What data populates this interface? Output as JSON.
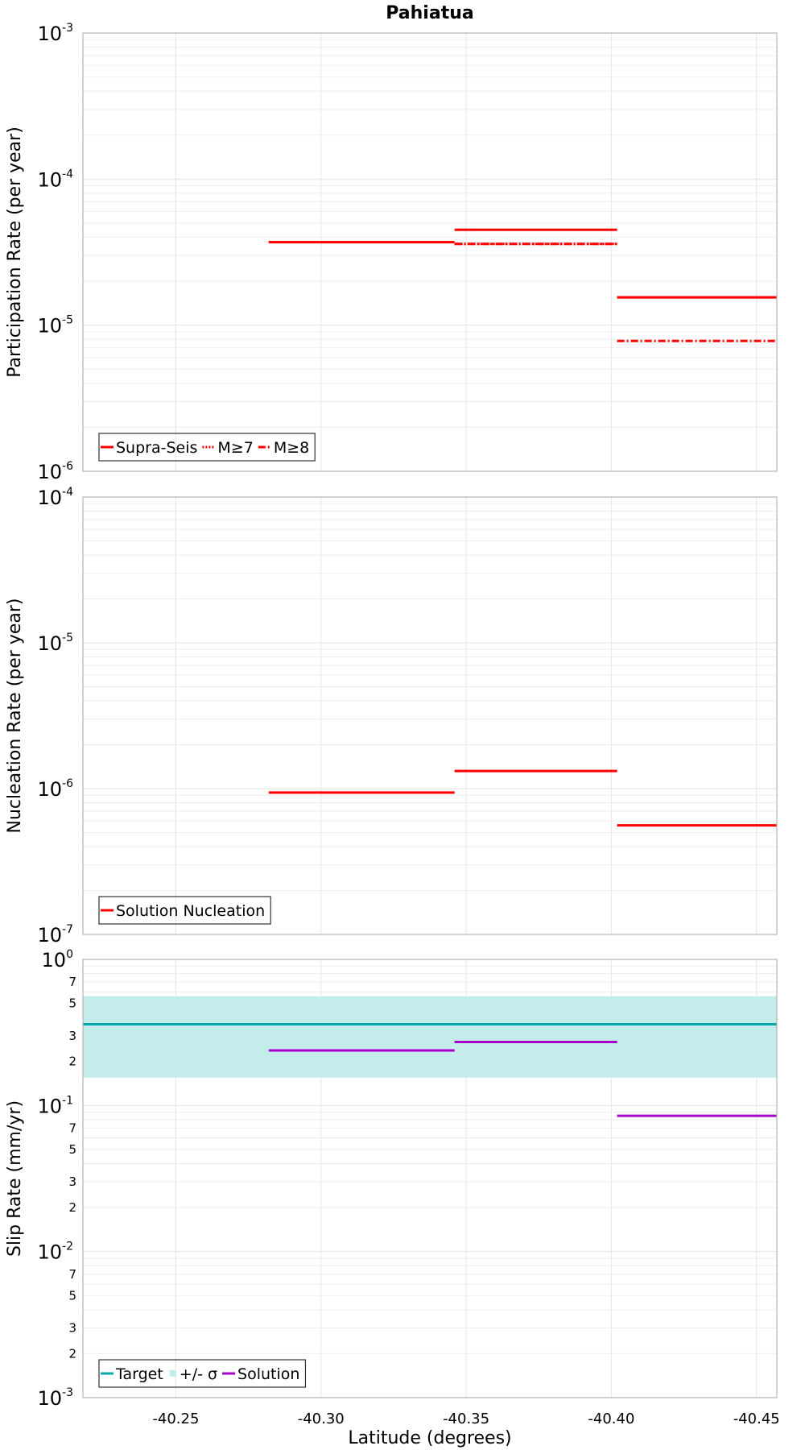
{
  "chart_data": [
    {
      "type": "line",
      "title": "Pahiatua",
      "ylabel": "Participation Rate (per year)",
      "yscale": "log",
      "ylim": [
        1e-06,
        0.001
      ],
      "xlim": [
        -40.218,
        -40.457
      ],
      "grid": true,
      "legend_position": "bottom-left",
      "legend": [
        "Supra-Seis",
        "M≥7",
        "M≥8"
      ],
      "series": [
        {
          "name": "Supra-Seis",
          "color": "#ff0000",
          "style": "solid",
          "segments": [
            [
              -40.282,
              -40.346,
              3.7e-05
            ],
            [
              -40.346,
              -40.402,
              4.5e-05
            ],
            [
              -40.402,
              -40.457,
              1.55e-05
            ]
          ]
        },
        {
          "name": "M≥7",
          "color": "#ff0000",
          "style": "dotted",
          "segments": [
            [
              -40.282,
              -40.346,
              3.7e-05
            ],
            [
              -40.346,
              -40.402,
              3.6e-05
            ],
            [
              -40.402,
              -40.457,
              1.55e-05
            ]
          ]
        },
        {
          "name": "M≥8",
          "color": "#ff0000",
          "style": "dash-dot",
          "segments": [
            [
              -40.346,
              -40.402,
              3.6e-05
            ],
            [
              -40.402,
              -40.457,
              7.8e-06
            ]
          ]
        }
      ]
    },
    {
      "type": "line",
      "ylabel": "Nucleation Rate (per year)",
      "yscale": "log",
      "ylim": [
        1e-07,
        0.0001
      ],
      "xlim": [
        -40.218,
        -40.457
      ],
      "grid": true,
      "legend_position": "bottom-left",
      "legend": [
        "Solution Nucleation"
      ],
      "series": [
        {
          "name": "Solution Nucleation",
          "color": "#ff0000",
          "style": "solid",
          "segments": [
            [
              -40.282,
              -40.346,
              9.4e-07
            ],
            [
              -40.346,
              -40.402,
              1.32e-06
            ],
            [
              -40.402,
              -40.457,
              5.6e-07
            ]
          ]
        }
      ]
    },
    {
      "type": "line",
      "ylabel": "Slip Rate (mm/yr)",
      "xlabel": "Latitude (degrees)",
      "yscale": "log",
      "ylim": [
        0.001,
        1
      ],
      "xlim": [
        -40.218,
        -40.457
      ],
      "grid": true,
      "legend_position": "bottom-left",
      "legend": [
        "Target",
        "+/- σ",
        "Solution"
      ],
      "series": [
        {
          "name": "Target",
          "color": "#00aaaa",
          "style": "solid",
          "segments": [
            [
              -40.218,
              -40.457,
              0.36
            ]
          ]
        },
        {
          "name": "+/- σ",
          "color": "#c3ecea",
          "style": "band",
          "band": [
            -40.218,
            -40.457,
            0.155,
            0.56
          ]
        },
        {
          "name": "Solution",
          "color": "#aa00cc",
          "style": "solid",
          "segments": [
            [
              -40.282,
              -40.346,
              0.238
            ],
            [
              -40.346,
              -40.402,
              0.272
            ],
            [
              -40.402,
              -40.457,
              0.085
            ]
          ]
        }
      ]
    }
  ],
  "x_ticks": [
    {
      "v": -40.25,
      "label": "-40.25"
    },
    {
      "v": -40.3,
      "label": "-40.30"
    },
    {
      "v": -40.35,
      "label": "-40.35"
    },
    {
      "v": -40.4,
      "label": "-40.40"
    },
    {
      "v": -40.45,
      "label": "-40.45"
    }
  ],
  "y_ticks": [
    [
      {
        "e": -3,
        "base": "10",
        "exp": "-3"
      },
      {
        "e": -4,
        "base": "10",
        "exp": "-4"
      },
      {
        "e": -5,
        "base": "10",
        "exp": "-5"
      },
      {
        "e": -6,
        "base": "10",
        "exp": "-6"
      }
    ],
    [
      {
        "e": -4,
        "base": "10",
        "exp": "-4"
      },
      {
        "e": -5,
        "base": "10",
        "exp": "-5"
      },
      {
        "e": -6,
        "base": "10",
        "exp": "-6"
      },
      {
        "e": -7,
        "base": "10",
        "exp": "-7"
      }
    ],
    [
      {
        "e": 0,
        "base": "10",
        "exp": "0"
      },
      {
        "e": -1,
        "base": "10",
        "exp": "-1"
      },
      {
        "e": -2,
        "base": "10",
        "exp": "-2"
      },
      {
        "e": -3,
        "base": "10",
        "exp": "-3"
      }
    ]
  ],
  "minor_labels_panel3": [
    "2",
    "3",
    "5",
    "7"
  ]
}
